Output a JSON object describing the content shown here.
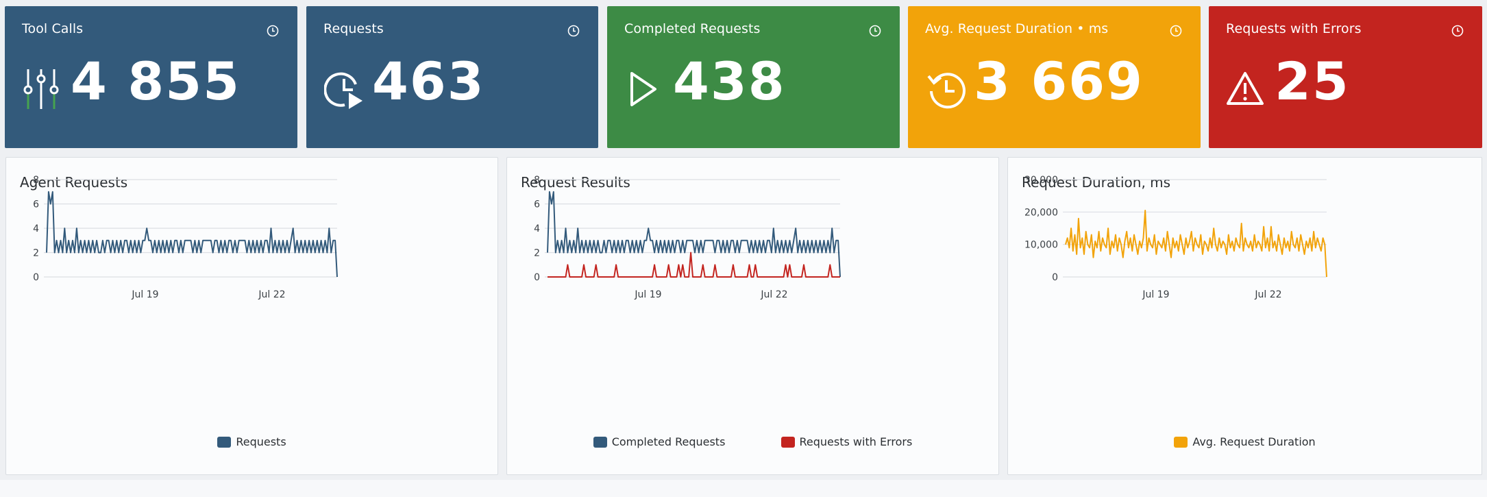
{
  "kpis": [
    {
      "title": "Tool Calls",
      "value": "4 855",
      "color": "#335a7b",
      "icon": "sliders-icon"
    },
    {
      "title": "Requests",
      "value": "463",
      "color": "#335a7b",
      "icon": "clock-play-icon"
    },
    {
      "title": "Completed Requests",
      "value": "438",
      "color": "#3d8b45",
      "icon": "play-icon"
    },
    {
      "title": "Avg. Request Duration • ms",
      "value": "3 669",
      "color": "#f2a30a",
      "icon": "history-icon"
    },
    {
      "title": "Requests with Errors",
      "value": "25",
      "color": "#c3241f",
      "icon": "warning-icon"
    }
  ],
  "panels": [
    {
      "title": "Agent Requests",
      "legend": [
        {
          "label": "Requests",
          "color": "#335a7b"
        }
      ]
    },
    {
      "title": "Request Results",
      "legend": [
        {
          "label": "Completed Requests",
          "color": "#335a7b"
        },
        {
          "label": "Requests with Errors",
          "color": "#c3241f"
        }
      ]
    },
    {
      "title": "Request Duration, ms",
      "legend": [
        {
          "label": "Avg. Request Duration",
          "color": "#f2a30a"
        }
      ]
    }
  ],
  "chart_data": [
    {
      "type": "line",
      "title": "Agent Requests",
      "x_start": "Jul 16",
      "x_end": "Jul 24",
      "x_tick_labels": [
        "Jul 19",
        "Jul 22"
      ],
      "y_ticks": [
        "0",
        "2",
        "4",
        "6",
        "8"
      ],
      "ylim": [
        0,
        8
      ],
      "grid": true,
      "legend_position": "bottom",
      "series": [
        {
          "name": "Requests",
          "color": "#335a7b",
          "values": [
            2,
            7,
            6,
            7,
            2,
            3,
            2,
            3,
            2,
            4,
            2,
            3,
            2,
            3,
            2,
            4,
            2,
            3,
            2,
            3,
            2,
            3,
            2,
            3,
            2,
            3,
            2,
            2,
            3,
            2,
            3,
            3,
            2,
            3,
            2,
            3,
            2,
            3,
            2,
            3,
            3,
            2,
            3,
            2,
            3,
            2,
            3,
            2,
            3,
            3,
            4,
            3,
            3,
            2,
            3,
            2,
            3,
            2,
            3,
            2,
            3,
            2,
            3,
            2,
            3,
            3,
            2,
            3,
            2,
            3,
            3,
            3,
            3,
            2,
            3,
            2,
            3,
            2,
            3,
            3,
            3,
            3,
            3,
            2,
            3,
            3,
            2,
            3,
            2,
            3,
            2,
            3,
            3,
            2,
            3,
            2,
            3,
            3,
            3,
            3,
            2,
            3,
            2,
            3,
            2,
            3,
            2,
            3,
            2,
            3,
            3,
            2,
            4,
            2,
            3,
            2,
            3,
            2,
            3,
            2,
            3,
            2,
            3,
            4,
            2,
            3,
            2,
            3,
            2,
            3,
            2,
            3,
            2,
            3,
            2,
            3,
            2,
            3,
            2,
            3,
            2,
            4,
            2,
            3,
            3,
            0
          ]
        }
      ]
    },
    {
      "type": "line",
      "title": "Request Results",
      "x_start": "Jul 16",
      "x_end": "Jul 24",
      "x_tick_labels": [
        "Jul 19",
        "Jul 22"
      ],
      "y_ticks": [
        "0",
        "2",
        "4",
        "6",
        "8"
      ],
      "ylim": [
        0,
        8
      ],
      "grid": true,
      "legend_position": "bottom",
      "series": [
        {
          "name": "Completed Requests",
          "color": "#335a7b",
          "values": [
            2,
            7,
            6,
            7,
            2,
            3,
            2,
            3,
            2,
            4,
            2,
            3,
            2,
            3,
            2,
            4,
            2,
            3,
            2,
            3,
            2,
            3,
            2,
            3,
            2,
            3,
            2,
            2,
            3,
            2,
            3,
            3,
            2,
            3,
            2,
            3,
            2,
            3,
            2,
            3,
            3,
            2,
            3,
            2,
            3,
            2,
            3,
            2,
            3,
            3,
            4,
            3,
            3,
            2,
            3,
            2,
            3,
            2,
            3,
            2,
            3,
            2,
            3,
            2,
            3,
            3,
            2,
            3,
            2,
            3,
            3,
            3,
            3,
            2,
            3,
            2,
            3,
            2,
            3,
            3,
            3,
            3,
            3,
            2,
            3,
            3,
            2,
            3,
            2,
            3,
            2,
            3,
            3,
            2,
            3,
            2,
            3,
            3,
            3,
            3,
            2,
            3,
            2,
            3,
            2,
            3,
            2,
            3,
            2,
            3,
            3,
            2,
            4,
            2,
            3,
            2,
            3,
            2,
            3,
            2,
            3,
            2,
            3,
            4,
            2,
            3,
            2,
            3,
            2,
            3,
            2,
            3,
            2,
            3,
            2,
            3,
            2,
            3,
            2,
            3,
            2,
            4,
            2,
            3,
            3,
            0
          ]
        },
        {
          "name": "Requests with Errors",
          "color": "#c3241f",
          "values": [
            0,
            0,
            0,
            0,
            0,
            0,
            0,
            0,
            0,
            0,
            1,
            0,
            0,
            0,
            0,
            0,
            0,
            0,
            1,
            0,
            0,
            0,
            0,
            0,
            1,
            0,
            0,
            0,
            0,
            0,
            0,
            0,
            0,
            0,
            1,
            0,
            0,
            0,
            0,
            0,
            0,
            0,
            0,
            0,
            0,
            0,
            0,
            0,
            0,
            0,
            0,
            0,
            0,
            1,
            0,
            0,
            0,
            0,
            0,
            0,
            1,
            0,
            0,
            0,
            0,
            1,
            0,
            1,
            0,
            0,
            0,
            2,
            0,
            0,
            0,
            0,
            0,
            1,
            0,
            0,
            0,
            0,
            0,
            1,
            0,
            0,
            0,
            0,
            0,
            0,
            0,
            0,
            1,
            0,
            0,
            0,
            0,
            0,
            0,
            0,
            1,
            0,
            0,
            1,
            0,
            0,
            0,
            0,
            0,
            0,
            0,
            0,
            0,
            0,
            0,
            0,
            0,
            0,
            1,
            0,
            1,
            0,
            0,
            0,
            0,
            0,
            0,
            1,
            0,
            0,
            0,
            0,
            0,
            0,
            0,
            0,
            0,
            0,
            0,
            0,
            1,
            0,
            0,
            0,
            0,
            0
          ]
        }
      ]
    },
    {
      "type": "line",
      "title": "Request Duration, ms",
      "x_start": "Jul 16",
      "x_end": "Jul 24",
      "x_tick_labels": [
        "Jul 19",
        "Jul 22"
      ],
      "y_ticks": [
        "0",
        "10,000",
        "20,000",
        "30,000"
      ],
      "ylim": [
        0,
        30000
      ],
      "grid": true,
      "legend_position": "bottom",
      "series": [
        {
          "name": "Avg. Request Duration",
          "color": "#f2a30a",
          "values": [
            10000,
            12000,
            9000,
            15000,
            8000,
            13000,
            7000,
            18000,
            9000,
            12000,
            7000,
            14000,
            10000,
            9000,
            13000,
            6000,
            11000,
            9000,
            14000,
            8000,
            12000,
            10000,
            9000,
            15000,
            7000,
            11000,
            9000,
            13000,
            8000,
            12000,
            10000,
            6000,
            11000,
            14000,
            9000,
            12000,
            8000,
            13000,
            10000,
            7000,
            11000,
            9000,
            12000,
            20500,
            8000,
            12000,
            10000,
            9000,
            13000,
            7000,
            11000,
            10000,
            9000,
            12000,
            8000,
            14000,
            10000,
            6000,
            12000,
            9000,
            11000,
            8000,
            13000,
            10000,
            7000,
            12000,
            9000,
            11000,
            14000,
            8000,
            12000,
            10000,
            9000,
            13000,
            7000,
            11000,
            10000,
            8000,
            12000,
            9000,
            15000,
            10000,
            8000,
            12000,
            9000,
            11000,
            10000,
            7000,
            13000,
            9000,
            11000,
            8000,
            12000,
            10000,
            9000,
            16500,
            8000,
            12000,
            10000,
            9000,
            11000,
            8000,
            13000,
            9000,
            11000,
            10000,
            8000,
            15500,
            9000,
            12000,
            8000,
            15500,
            9000,
            11000,
            8000,
            13000,
            10000,
            7000,
            12000,
            9000,
            11000,
            8000,
            14000,
            10000,
            9000,
            12000,
            8000,
            13000,
            10000,
            7000,
            11000,
            9000,
            12000,
            8000,
            14000,
            9000,
            12000,
            10000,
            8000,
            12000,
            10000,
            0
          ]
        }
      ]
    }
  ]
}
